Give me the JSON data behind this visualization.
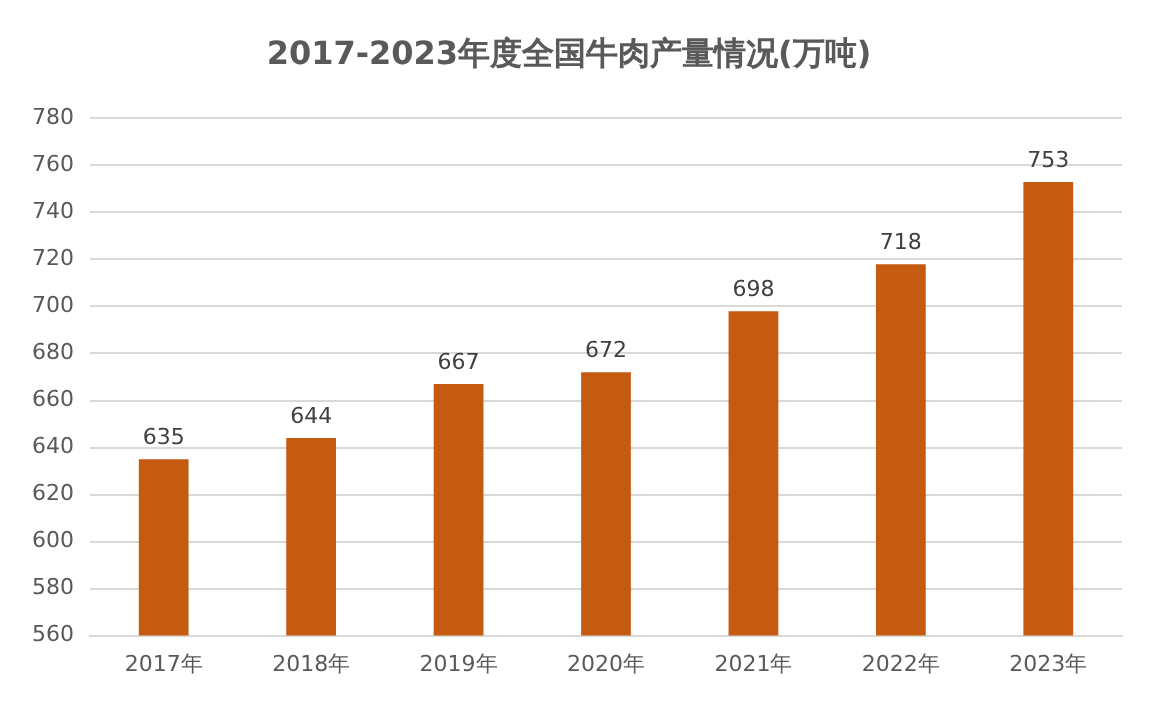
{
  "chart_data": {
    "type": "bar",
    "title": "2017-2023年度全国牛肉产量情况(万吨)",
    "categories": [
      "2017年",
      "2018年",
      "2019年",
      "2020年",
      "2021年",
      "2022年",
      "2023年"
    ],
    "values": [
      635,
      644,
      667,
      672,
      698,
      718,
      753
    ],
    "color": "#c55a11",
    "ylim": [
      560,
      780
    ],
    "yticks": [
      560,
      580,
      600,
      620,
      640,
      660,
      680,
      700,
      720,
      740,
      760,
      780
    ],
    "grid": "y",
    "data_labels": true
  }
}
